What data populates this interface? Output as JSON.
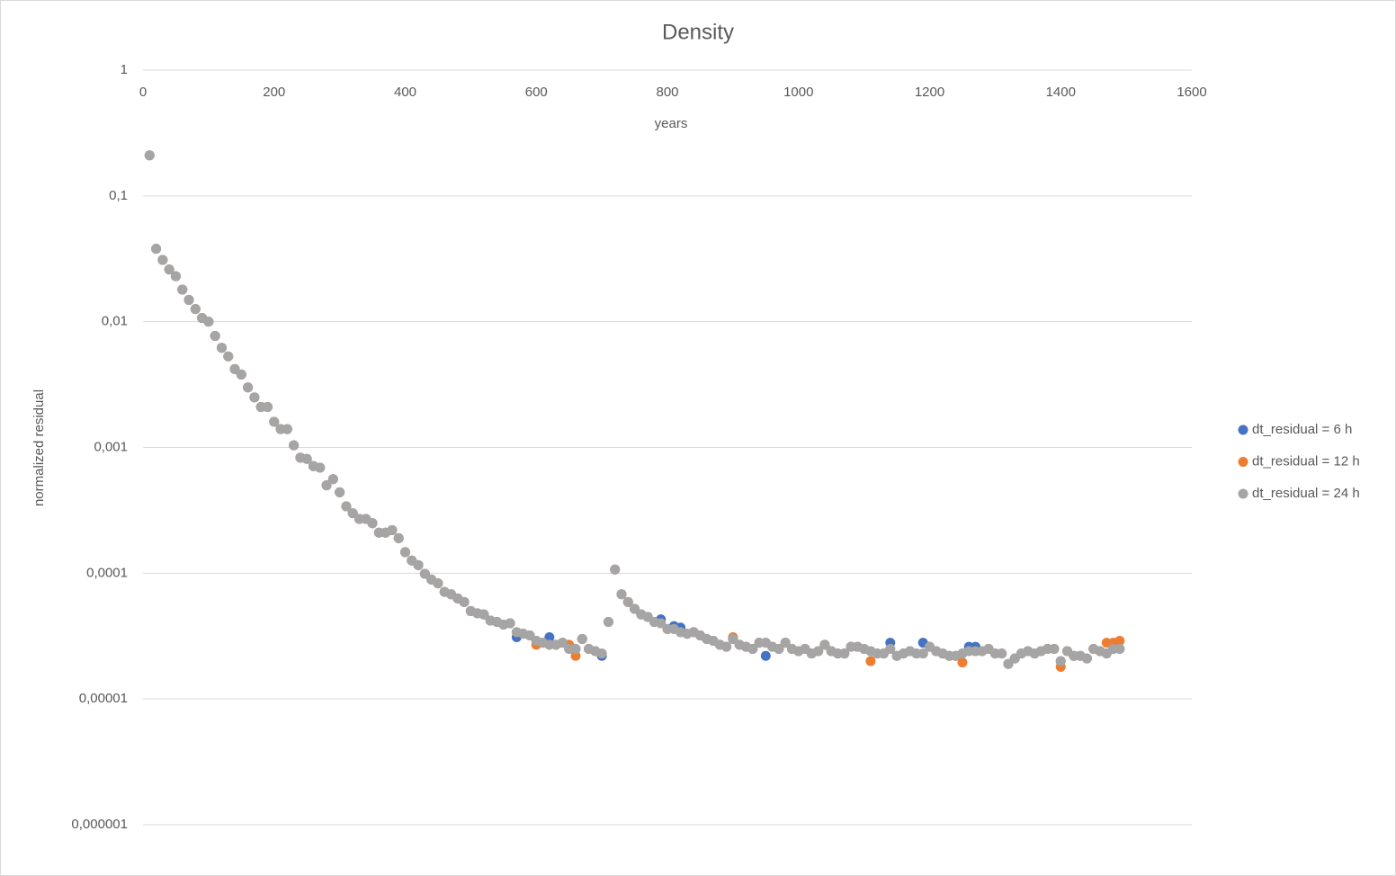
{
  "chart_data": {
    "type": "scatter",
    "title": "Density",
    "x_label": "years",
    "y_label": "normalized residual",
    "yscale": "log",
    "grid": true,
    "legend": "right",
    "xlim": [
      0,
      1600
    ],
    "xticks": [
      0,
      200,
      400,
      600,
      800,
      1000,
      1200,
      1400,
      1600
    ],
    "ylim": [
      1e-06,
      1
    ],
    "yticks": [
      {
        "value": 1e-06,
        "label": "0,000001"
      },
      {
        "value": 1e-05,
        "label": "0,00001"
      },
      {
        "value": 0.0001,
        "label": "0,0001"
      },
      {
        "value": 0.001,
        "label": "0,001"
      },
      {
        "value": 0.01,
        "label": "0,01"
      },
      {
        "value": 0.1,
        "label": "0,1"
      },
      1
    ],
    "x": [
      10,
      20,
      30,
      40,
      50,
      60,
      70,
      80,
      90,
      100,
      110,
      120,
      130,
      140,
      150,
      160,
      170,
      180,
      190,
      200,
      210,
      220,
      230,
      240,
      250,
      260,
      270,
      280,
      290,
      300,
      310,
      320,
      330,
      340,
      350,
      360,
      370,
      380,
      390,
      400,
      410,
      420,
      430,
      440,
      450,
      460,
      470,
      480,
      490,
      500,
      510,
      520,
      530,
      540,
      550,
      560,
      570,
      580,
      590,
      600,
      610,
      620,
      630,
      640,
      650,
      660,
      670,
      680,
      690,
      700,
      710,
      720,
      730,
      740,
      750,
      760,
      770,
      780,
      790,
      800,
      810,
      820,
      830,
      840,
      850,
      860,
      870,
      880,
      890,
      900,
      910,
      920,
      930,
      940,
      950,
      960,
      970,
      980,
      990,
      1000,
      1010,
      1020,
      1030,
      1040,
      1050,
      1060,
      1070,
      1080,
      1090,
      1100,
      1110,
      1120,
      1130,
      1140,
      1150,
      1160,
      1170,
      1180,
      1190,
      1200,
      1210,
      1220,
      1230,
      1240,
      1250,
      1260,
      1270,
      1280,
      1290,
      1300,
      1310,
      1320,
      1330,
      1340,
      1350,
      1360,
      1370,
      1380,
      1390,
      1400,
      1410,
      1420,
      1430,
      1440,
      1450,
      1460,
      1470,
      1480,
      1490
    ],
    "series": [
      {
        "name": "dt_residual = 6 h",
        "color": "#4472c4",
        "values": [
          0.21,
          0.038,
          0.031,
          0.026,
          0.023,
          0.018,
          0.0149,
          0.0126,
          0.0107,
          0.01,
          0.0077,
          0.0062,
          0.0053,
          0.0042,
          0.0038,
          0.003,
          0.0025,
          0.0021,
          0.0021,
          0.0016,
          0.0014,
          0.0014,
          0.00104,
          0.00083,
          0.00081,
          0.00071,
          0.00069,
          0.0005,
          0.00056,
          0.00044,
          0.00034,
          0.0003,
          0.00027,
          0.00027,
          0.00025,
          0.00021,
          0.00021,
          0.00022,
          0.00019,
          0.000147,
          0.000126,
          0.000116,
          9.9e-05,
          8.9e-05,
          8.3e-05,
          7.1e-05,
          6.8e-05,
          6.3e-05,
          5.9e-05,
          5e-05,
          4.8e-05,
          4.7e-05,
          4.2e-05,
          4.1e-05,
          3.9e-05,
          4e-05,
          3.1e-05,
          3.3e-05,
          3.2e-05,
          2.9e-05,
          2.8e-05,
          3.1e-05,
          2.7e-05,
          2.8e-05,
          2.5e-05,
          2.5e-05,
          3e-05,
          2.5e-05,
          2.4e-05,
          2.2e-05,
          4.1e-05,
          0.000107,
          6.8e-05,
          5.9e-05,
          5.2e-05,
          4.7e-05,
          4.5e-05,
          4.1e-05,
          4.3e-05,
          3.6e-05,
          3.8e-05,
          3.7e-05,
          3.3e-05,
          3.4e-05,
          3.2e-05,
          3e-05,
          2.9e-05,
          2.7e-05,
          2.6e-05,
          3e-05,
          2.7e-05,
          2.6e-05,
          2.5e-05,
          2.8e-05,
          2.2e-05,
          2.6e-05,
          2.5e-05,
          2.8e-05,
          2.5e-05,
          2.4e-05,
          2.5e-05,
          2.3e-05,
          2.4e-05,
          2.7e-05,
          2.4e-05,
          2.3e-05,
          2.3e-05,
          2.6e-05,
          2.6e-05,
          2.5e-05,
          2.4e-05,
          2.3e-05,
          2.3e-05,
          2.8e-05,
          2.2e-05,
          2.3e-05,
          2.4e-05,
          2.3e-05,
          2.8e-05,
          2.6e-05,
          2.4e-05,
          2.3e-05,
          2.2e-05,
          2.2e-05,
          2.3e-05,
          2.6e-05,
          2.6e-05,
          2.4e-05,
          2.5e-05,
          2.3e-05,
          2.3e-05,
          1.9e-05,
          2.1e-05,
          2.3e-05,
          2.4e-05,
          2.3e-05,
          2.4e-05,
          2.5e-05,
          2.5e-05,
          2e-05,
          2.4e-05,
          2.2e-05,
          2.2e-05,
          2.1e-05,
          2.5e-05,
          2.4e-05,
          2.3e-05,
          2.5e-05,
          2.5e-05
        ]
      },
      {
        "name": "dt_residual = 12 h",
        "color": "#ed7d31",
        "values": [
          0.21,
          0.038,
          0.031,
          0.026,
          0.023,
          0.018,
          0.0149,
          0.0126,
          0.0107,
          0.01,
          0.0077,
          0.0062,
          0.0053,
          0.0042,
          0.0038,
          0.003,
          0.0025,
          0.0021,
          0.0021,
          0.0016,
          0.0014,
          0.0014,
          0.00104,
          0.00083,
          0.00081,
          0.00071,
          0.00069,
          0.0005,
          0.00056,
          0.00044,
          0.00034,
          0.0003,
          0.00027,
          0.00027,
          0.00025,
          0.00021,
          0.00021,
          0.00022,
          0.00019,
          0.000147,
          0.000126,
          0.000116,
          9.9e-05,
          8.9e-05,
          8.3e-05,
          7.1e-05,
          6.8e-05,
          6.3e-05,
          5.9e-05,
          5e-05,
          4.8e-05,
          4.7e-05,
          4.2e-05,
          4.1e-05,
          3.9e-05,
          4e-05,
          3.4e-05,
          3.3e-05,
          3.2e-05,
          2.7e-05,
          2.8e-05,
          2.7e-05,
          2.7e-05,
          2.8e-05,
          2.7e-05,
          2.2e-05,
          3e-05,
          2.5e-05,
          2.4e-05,
          2.3e-05,
          4.1e-05,
          0.000107,
          6.8e-05,
          5.9e-05,
          5.2e-05,
          4.7e-05,
          4.5e-05,
          4.1e-05,
          4e-05,
          3.6e-05,
          3.6e-05,
          3.4e-05,
          3.3e-05,
          3.4e-05,
          3.2e-05,
          3e-05,
          2.9e-05,
          2.7e-05,
          2.6e-05,
          3.1e-05,
          2.7e-05,
          2.6e-05,
          2.5e-05,
          2.8e-05,
          2.8e-05,
          2.6e-05,
          2.5e-05,
          2.8e-05,
          2.5e-05,
          2.4e-05,
          2.5e-05,
          2.3e-05,
          2.4e-05,
          2.7e-05,
          2.4e-05,
          2.3e-05,
          2.3e-05,
          2.6e-05,
          2.6e-05,
          2.5e-05,
          2e-05,
          2.3e-05,
          2.3e-05,
          2.5e-05,
          2.2e-05,
          2.3e-05,
          2.4e-05,
          2.3e-05,
          2.3e-05,
          2.6e-05,
          2.4e-05,
          2.3e-05,
          2.2e-05,
          2.2e-05,
          1.95e-05,
          2.4e-05,
          2.4e-05,
          2.4e-05,
          2.5e-05,
          2.3e-05,
          2.3e-05,
          1.9e-05,
          2.1e-05,
          2.3e-05,
          2.4e-05,
          2.3e-05,
          2.4e-05,
          2.5e-05,
          2.5e-05,
          1.8e-05,
          2.4e-05,
          2.2e-05,
          2.2e-05,
          2.1e-05,
          2.5e-05,
          2.4e-05,
          2.8e-05,
          2.8e-05,
          2.9e-05
        ]
      },
      {
        "name": "dt_residual = 24 h",
        "color": "#a5a5a5",
        "values": [
          0.21,
          0.038,
          0.031,
          0.026,
          0.023,
          0.018,
          0.0149,
          0.0126,
          0.0107,
          0.01,
          0.0077,
          0.0062,
          0.0053,
          0.0042,
          0.0038,
          0.003,
          0.0025,
          0.0021,
          0.0021,
          0.0016,
          0.0014,
          0.0014,
          0.00104,
          0.00083,
          0.00081,
          0.00071,
          0.00069,
          0.0005,
          0.00056,
          0.00044,
          0.00034,
          0.0003,
          0.00027,
          0.00027,
          0.00025,
          0.00021,
          0.00021,
          0.00022,
          0.00019,
          0.000147,
          0.000126,
          0.000116,
          9.9e-05,
          8.9e-05,
          8.3e-05,
          7.1e-05,
          6.8e-05,
          6.3e-05,
          5.9e-05,
          5e-05,
          4.8e-05,
          4.7e-05,
          4.2e-05,
          4.1e-05,
          3.9e-05,
          4e-05,
          3.4e-05,
          3.3e-05,
          3.2e-05,
          2.9e-05,
          2.8e-05,
          2.7e-05,
          2.7e-05,
          2.8e-05,
          2.5e-05,
          2.5e-05,
          3e-05,
          2.5e-05,
          2.4e-05,
          2.3e-05,
          4.1e-05,
          0.000107,
          6.8e-05,
          5.9e-05,
          5.2e-05,
          4.7e-05,
          4.5e-05,
          4.1e-05,
          4e-05,
          3.6e-05,
          3.6e-05,
          3.4e-05,
          3.3e-05,
          3.4e-05,
          3.2e-05,
          3e-05,
          2.9e-05,
          2.7e-05,
          2.6e-05,
          3e-05,
          2.7e-05,
          2.6e-05,
          2.5e-05,
          2.8e-05,
          2.8e-05,
          2.6e-05,
          2.5e-05,
          2.8e-05,
          2.5e-05,
          2.4e-05,
          2.5e-05,
          2.3e-05,
          2.4e-05,
          2.7e-05,
          2.4e-05,
          2.3e-05,
          2.3e-05,
          2.6e-05,
          2.6e-05,
          2.5e-05,
          2.4e-05,
          2.3e-05,
          2.3e-05,
          2.5e-05,
          2.2e-05,
          2.3e-05,
          2.4e-05,
          2.3e-05,
          2.3e-05,
          2.6e-05,
          2.4e-05,
          2.3e-05,
          2.2e-05,
          2.2e-05,
          2.3e-05,
          2.4e-05,
          2.4e-05,
          2.4e-05,
          2.5e-05,
          2.3e-05,
          2.3e-05,
          1.9e-05,
          2.1e-05,
          2.3e-05,
          2.4e-05,
          2.3e-05,
          2.4e-05,
          2.5e-05,
          2.5e-05,
          2e-05,
          2.4e-05,
          2.2e-05,
          2.2e-05,
          2.1e-05,
          2.5e-05,
          2.4e-05,
          2.3e-05,
          2.5e-05,
          2.5e-05
        ]
      }
    ]
  }
}
